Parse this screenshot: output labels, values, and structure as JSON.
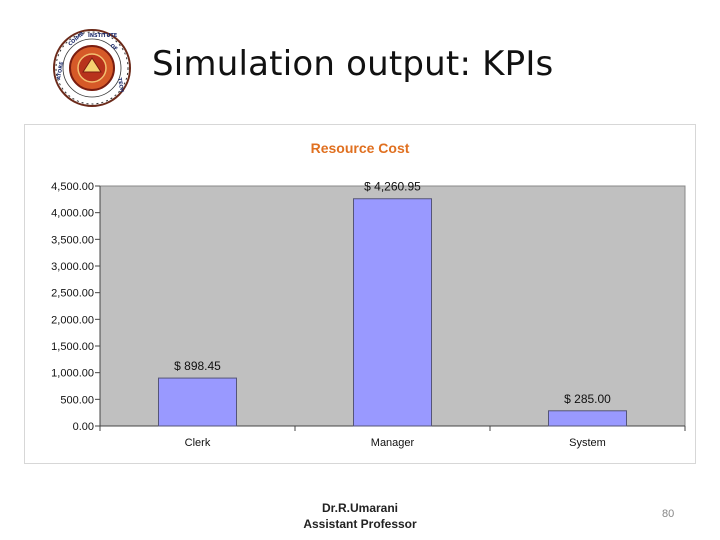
{
  "slide": {
    "title": "Simulation output: KPIs",
    "footer_line1": "Dr.R.Umarani",
    "footer_line2": "Assistant Professor",
    "page_number": "80",
    "logo_text": "COIMBATORE INSTITUTE OF TECHNOLOGY"
  },
  "colors": {
    "plot_background": "#c0c0c0",
    "bar_fill": "#9999ff",
    "bar_stroke": "#555577",
    "title_color": "#e07020"
  },
  "chart_data": {
    "type": "bar",
    "title": "Resource Cost",
    "xlabel": "",
    "ylabel": "",
    "categories": [
      "Clerk",
      "Manager",
      "System"
    ],
    "values": [
      898.45,
      4260.95,
      285.0
    ],
    "value_labels": [
      "$ 898.45",
      "$ 4,260.95",
      "$ 285.00"
    ],
    "ylim": [
      0,
      4500
    ],
    "yticks": [
      0,
      500,
      1000,
      1500,
      2000,
      2500,
      3000,
      3500,
      4000,
      4500
    ],
    "ytick_labels": [
      "0.00",
      "500.00",
      "1,000.00",
      "1,500.00",
      "2,000.00",
      "2,500.00",
      "3,000.00",
      "3,500.00",
      "4,000.00",
      "4,500.00"
    ],
    "grid": false,
    "legend": "none"
  }
}
